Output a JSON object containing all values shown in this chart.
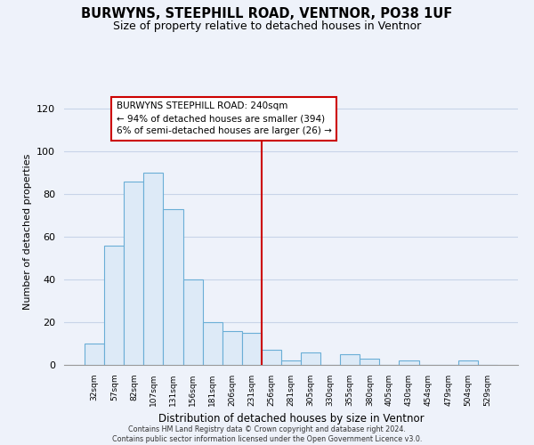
{
  "title": "BURWYNS, STEEPHILL ROAD, VENTNOR, PO38 1UF",
  "subtitle": "Size of property relative to detached houses in Ventnor",
  "xlabel": "Distribution of detached houses by size in Ventnor",
  "ylabel": "Number of detached properties",
  "bar_labels": [
    "32sqm",
    "57sqm",
    "82sqm",
    "107sqm",
    "131sqm",
    "156sqm",
    "181sqm",
    "206sqm",
    "231sqm",
    "256sqm",
    "281sqm",
    "305sqm",
    "330sqm",
    "355sqm",
    "380sqm",
    "405sqm",
    "430sqm",
    "454sqm",
    "479sqm",
    "504sqm",
    "529sqm"
  ],
  "bar_values": [
    10,
    56,
    86,
    90,
    73,
    40,
    20,
    16,
    15,
    7,
    2,
    6,
    0,
    5,
    3,
    0,
    2,
    0,
    0,
    2,
    0
  ],
  "bar_color": "#ddeaf7",
  "bar_edge_color": "#6aaed6",
  "vline_x_index": 9,
  "vline_color": "#cc0000",
  "annotation_title": "BURWYNS STEEPHILL ROAD: 240sqm",
  "annotation_line1": "← 94% of detached houses are smaller (394)",
  "annotation_line2": "6% of semi-detached houses are larger (26) →",
  "ylim": [
    0,
    125
  ],
  "yticks": [
    0,
    20,
    40,
    60,
    80,
    100,
    120
  ],
  "footer_line1": "Contains HM Land Registry data © Crown copyright and database right 2024.",
  "footer_line2": "Contains public sector information licensed under the Open Government Licence v3.0.",
  "bg_color": "#eef2fa",
  "grid_color": "#c8d4e8",
  "title_fontsize": 10.5,
  "subtitle_fontsize": 9
}
